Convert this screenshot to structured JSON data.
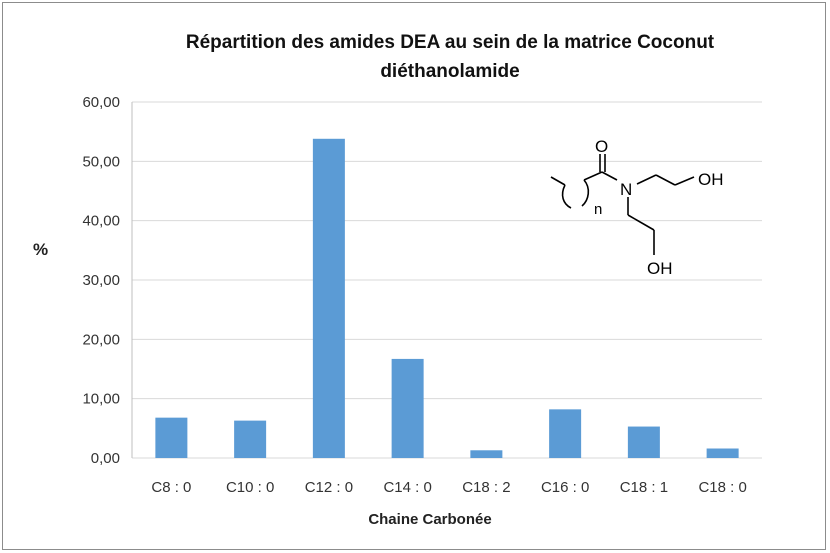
{
  "chart_data": {
    "type": "bar",
    "title": "Répartition des amides DEA au sein de la matrice Coconut diéthanolamide",
    "xlabel": "Chaine Carbonée",
    "ylabel": "%",
    "categories": [
      "C8 : 0",
      "C10 : 0",
      "C12 : 0",
      "C14 : 0",
      "C18 : 2",
      "C16 : 0",
      "C18 : 1",
      "C18 : 0"
    ],
    "values": [
      6.8,
      6.3,
      53.8,
      16.7,
      1.3,
      8.2,
      5.3,
      1.6
    ],
    "ylim": [
      0,
      60
    ],
    "yticks": [
      "0,00",
      "10,00",
      "20,00",
      "30,00",
      "40,00",
      "50,00",
      "60,00"
    ],
    "grid": true,
    "bar_color": "#5b9bd5"
  },
  "structure": {
    "carbonyl_label": "O",
    "nitrogen_label": "N",
    "subscript_label": "n",
    "hydroxyl_top_label": "OH",
    "hydroxyl_bottom_label": "OH"
  }
}
